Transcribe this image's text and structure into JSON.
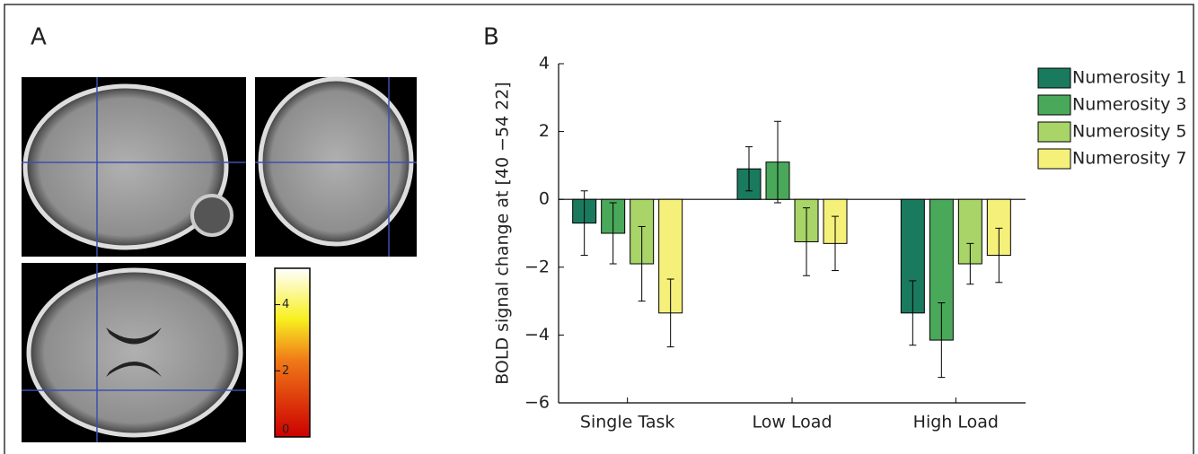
{
  "panel_a": {
    "label": "A",
    "colorbar": {
      "lim": [
        0,
        5.1
      ],
      "ticks": [
        0,
        2,
        4
      ]
    }
  },
  "panel_b_label": "B",
  "chart_data": {
    "type": "bar",
    "ylabel": "BOLD signal change at [40 −54 22]",
    "categories": [
      "Single Task",
      "Low Load",
      "High Load"
    ],
    "ylim": [
      -6,
      4
    ],
    "yticks": [
      {
        "value": -6,
        "label": "−6"
      },
      {
        "value": -4,
        "label": "−4"
      },
      {
        "value": -2,
        "label": "−2"
      },
      0,
      2,
      4
    ],
    "grid": false,
    "series": [
      {
        "name": "Numerosity 1",
        "color": "#1a7a5e",
        "values": [
          -0.7,
          0.9,
          -3.35
        ],
        "errors": [
          0.95,
          0.65,
          0.95
        ]
      },
      {
        "name": "Numerosity 3",
        "color": "#4aa85a",
        "values": [
          -1.0,
          1.1,
          -4.15
        ],
        "errors": [
          0.9,
          1.2,
          1.1
        ]
      },
      {
        "name": "Numerosity 5",
        "color": "#a8d468",
        "values": [
          -1.9,
          -1.25,
          -1.9
        ],
        "errors": [
          1.1,
          1.0,
          0.6
        ]
      },
      {
        "name": "Numerosity 7",
        "color": "#f5f07a",
        "values": [
          -3.35,
          -1.3,
          -1.65
        ],
        "errors": [
          1.0,
          0.8,
          0.8
        ]
      }
    ]
  }
}
